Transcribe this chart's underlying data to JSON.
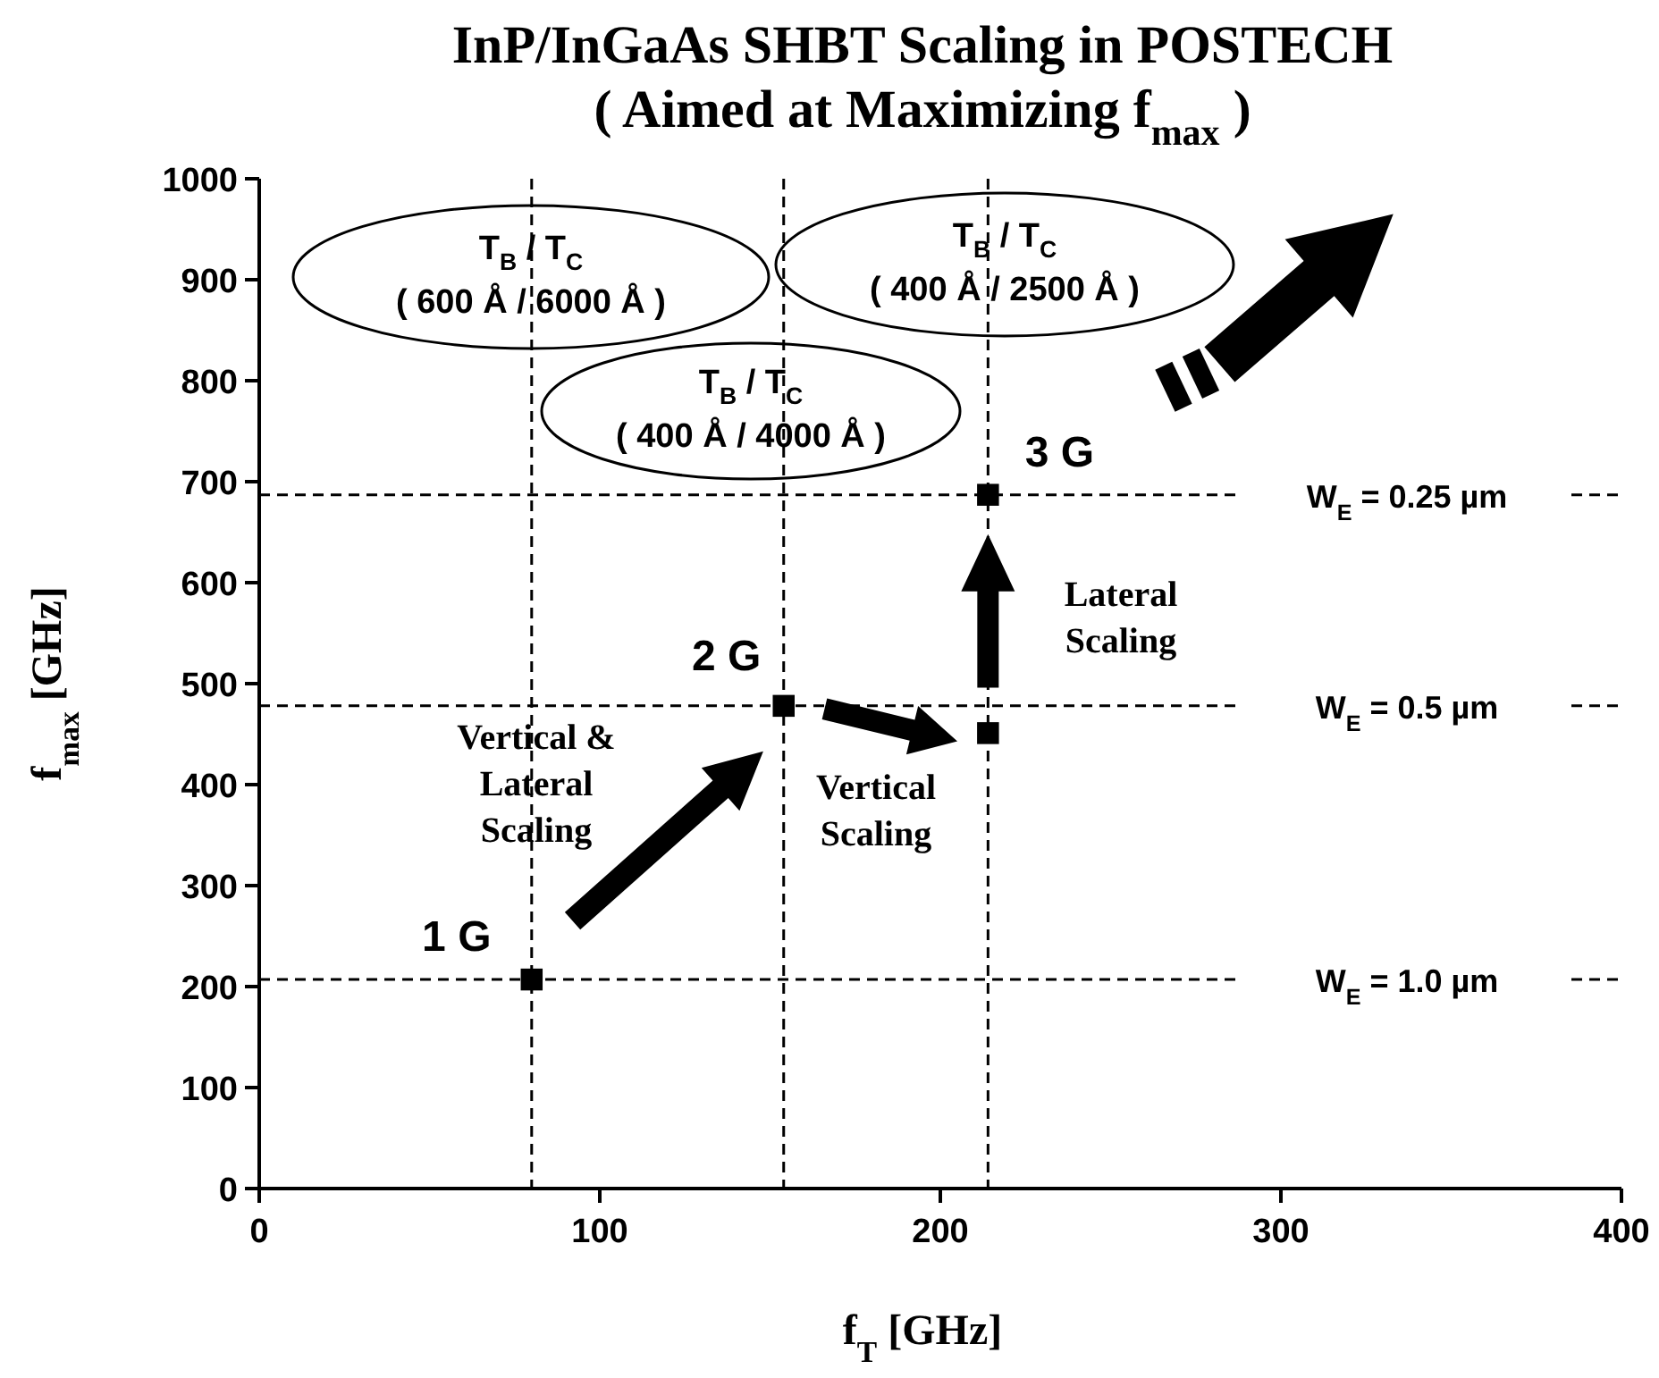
{
  "chart_data": {
    "type": "scatter",
    "title": "InP/InGaAs SHBT Scaling in POSTECH\n( Aimed at Maximizing f$_{max}$ )",
    "xlabel": "f$_{T}$ [GHz]",
    "ylabel": "f$_{max}$ [GHz]",
    "x": [
      80,
      154,
      214,
      214
    ],
    "values": [
      207,
      478,
      451,
      687
    ],
    "color": "#000000",
    "marker": "square",
    "xlim": [
      0,
      400
    ],
    "xticks": [
      0,
      100,
      200,
      300,
      400
    ],
    "ylim": [
      0,
      1000
    ],
    "yticks": [
      0,
      100,
      200,
      300,
      400,
      500,
      600,
      700,
      800,
      900,
      1000
    ],
    "grid": false,
    "ref_lines": [
      {
        "axis": "x",
        "value": 80,
        "line_style": "dashed",
        "color": "#000000"
      },
      {
        "axis": "x",
        "value": 154,
        "line_style": "dashed",
        "color": "#000000"
      },
      {
        "axis": "x",
        "value": 214,
        "line_style": "dashed",
        "color": "#000000"
      },
      {
        "axis": "y",
        "value": 207,
        "line_style": "dashed",
        "color": "#000000"
      },
      {
        "axis": "y",
        "value": 478,
        "line_style": "dashed",
        "color": "#000000"
      },
      {
        "axis": "y",
        "value": 687,
        "line_style": "dashed",
        "color": "#000000"
      }
    ],
    "annotations": [
      {
        "text": "1 G",
        "x": 80,
        "y": 207
      },
      {
        "text": "2 G",
        "x": 154,
        "y": 478
      },
      {
        "text": "3 G",
        "x": 214,
        "y": 687
      },
      "W$_{E}$ = 1.0 µm",
      "W$_{E}$ = 0.5 µm",
      "W$_{E}$ = 0.25 µm",
      "T$_{B}$ / T$_{C}$\n( 600 Å / 6000 Å )",
      "T$_{B}$ / T$_{C}$\n( 400 Å / 4000 Å )",
      "T$_{B}$ / T$_{C}$\n( 400 Å / 2500 Å )",
      "Vertical &\nLateral\nScaling",
      "Vertical\nScaling",
      "Lateral\nScaling"
    ]
  }
}
